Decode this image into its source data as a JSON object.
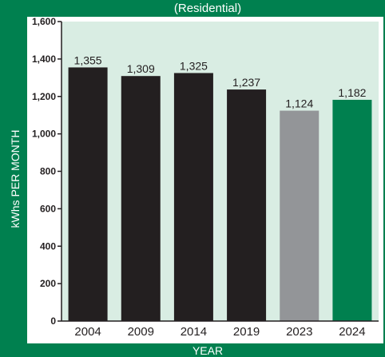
{
  "chart_data": {
    "type": "bar",
    "title": "",
    "subtitle": "(Residential)",
    "xlabel": "YEAR",
    "ylabel": "kWhs PER MONTH",
    "categories": [
      "2004",
      "2009",
      "2014",
      "2019",
      "2023",
      "2024"
    ],
    "values": [
      1355,
      1309,
      1325,
      1237,
      1124,
      1182
    ],
    "value_labels": [
      "1,355",
      "1,309",
      "1,325",
      "1,237",
      "1,124",
      "1,182"
    ],
    "bar_colors": [
      "#231f20",
      "#231f20",
      "#231f20",
      "#231f20",
      "#939598",
      "#00804f"
    ],
    "ylim": [
      0,
      1600
    ],
    "yticks": [
      0,
      200,
      400,
      600,
      800,
      1000,
      1200,
      1400,
      1600
    ],
    "ytick_labels": [
      "0",
      "200",
      "400",
      "600",
      "800",
      "1,000",
      "1,200",
      "1,400",
      "1,600"
    ],
    "grid": false,
    "colors": {
      "frame": "#00804f",
      "plot_background": "#d9ede3",
      "past_years": "#231f20",
      "year_2023": "#939598",
      "year_2024": "#00804f"
    }
  }
}
